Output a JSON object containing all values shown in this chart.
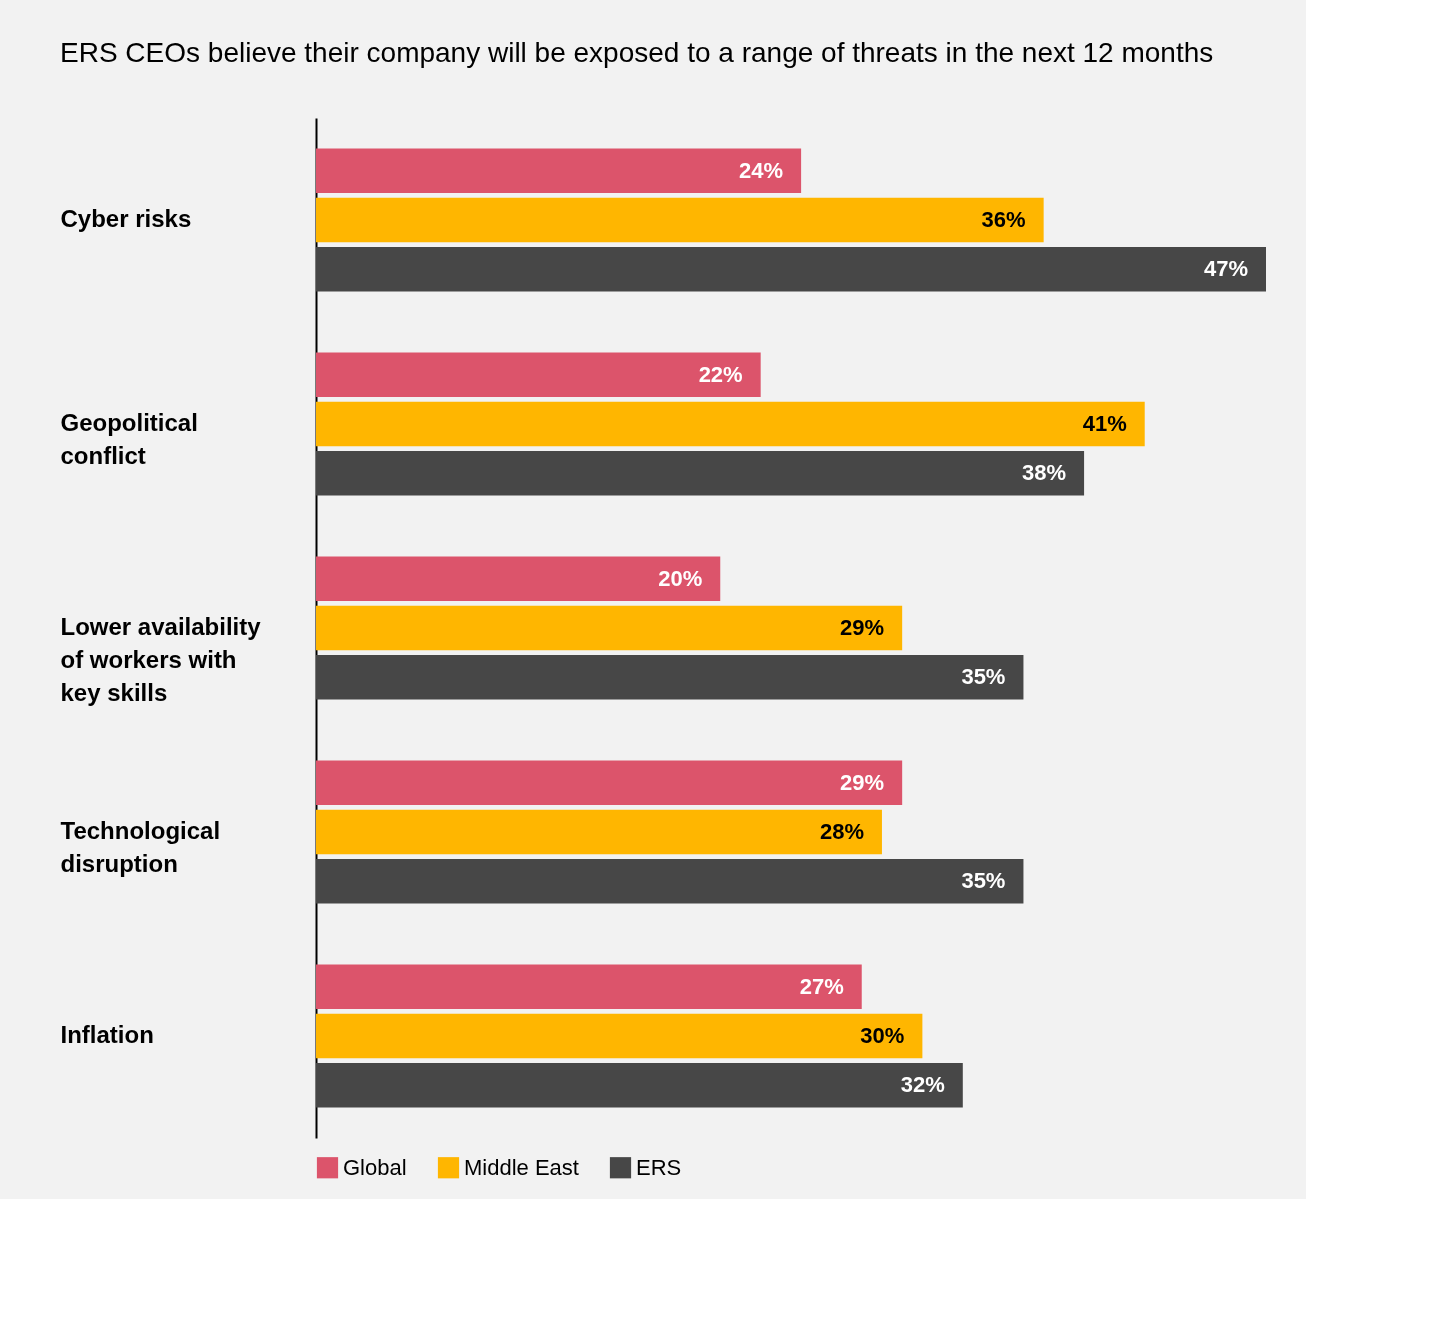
{
  "chart_data": {
    "type": "bar",
    "orientation": "horizontal",
    "title": "ERS CEOs believe their company will be exposed to a range of threats in the next 12 months",
    "categories": [
      "Cyber risks",
      "Geopolitical conflict",
      "Lower availability of workers with key skills",
      "Technological disruption",
      "Inflation"
    ],
    "series": [
      {
        "name": "Global",
        "color": "#dc546b",
        "values": [
          24,
          22,
          20,
          29,
          27
        ],
        "value_labels": [
          "24%",
          "22%",
          "20%",
          "29%",
          "27%"
        ]
      },
      {
        "name": "Middle East",
        "color": "#ffb600",
        "values": [
          36,
          41,
          29,
          28,
          30
        ],
        "value_labels": [
          "36%",
          "41%",
          "29%",
          "28%",
          "30%"
        ]
      },
      {
        "name": "ERS",
        "color": "#474747",
        "values": [
          47,
          38,
          35,
          35,
          32
        ],
        "value_labels": [
          "47%",
          "38%",
          "35%",
          "35%",
          "32%"
        ]
      }
    ],
    "legend": "bottom",
    "grid": false
  }
}
